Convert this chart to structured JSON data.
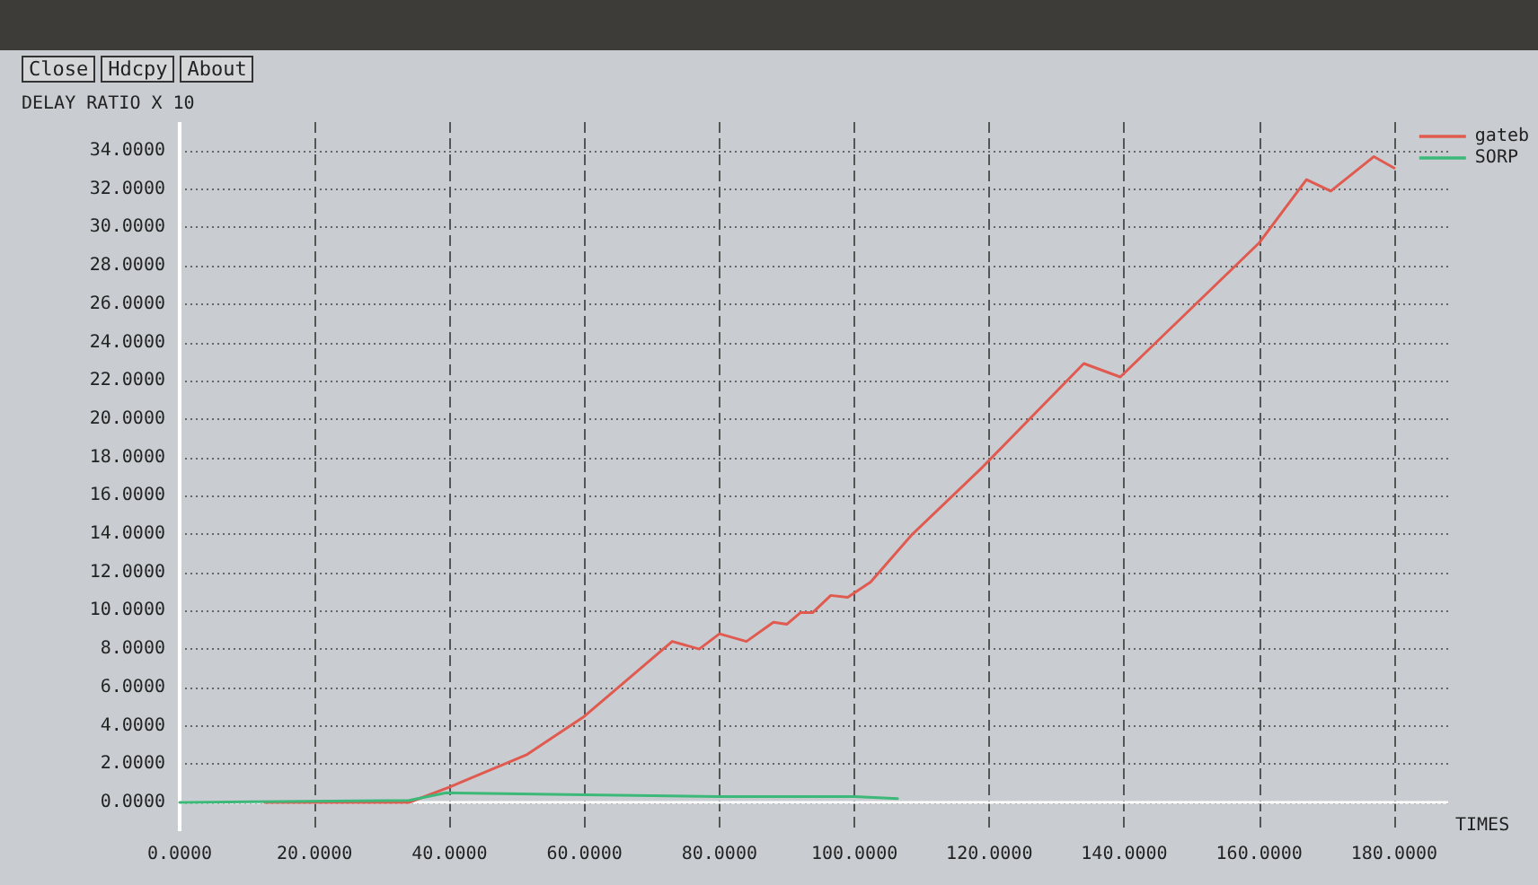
{
  "chart_data": {
    "type": "line",
    "ylabel": "DELAY RATIO X 10",
    "xlabel": "TIMES",
    "annotations": [
      "Close",
      "Hdcpy",
      "About"
    ],
    "xlim": [
      0,
      188
    ],
    "ylim": [
      -1.5,
      35.5
    ],
    "xticks": [
      {
        "value": 0,
        "label": "0.0000"
      },
      {
        "value": 20,
        "label": "20.0000"
      },
      {
        "value": 40,
        "label": "40.0000"
      },
      {
        "value": 60,
        "label": "60.0000"
      },
      {
        "value": 80,
        "label": "80.0000"
      },
      {
        "value": 100,
        "label": "100.0000"
      },
      {
        "value": 120,
        "label": "120.0000"
      },
      {
        "value": 140,
        "label": "140.0000"
      },
      {
        "value": 160,
        "label": "160.0000"
      },
      {
        "value": 180,
        "label": "180.0000"
      }
    ],
    "yticks": [
      {
        "value": 0,
        "label": "0.0000"
      },
      {
        "value": 2,
        "label": "2.0000"
      },
      {
        "value": 4,
        "label": "4.0000"
      },
      {
        "value": 6,
        "label": "6.0000"
      },
      {
        "value": 8,
        "label": "8.0000"
      },
      {
        "value": 10,
        "label": "10.0000"
      },
      {
        "value": 12,
        "label": "12.0000"
      },
      {
        "value": 14,
        "label": "14.0000"
      },
      {
        "value": 16,
        "label": "16.0000"
      },
      {
        "value": 18,
        "label": "18.0000"
      },
      {
        "value": 20,
        "label": "20.0000"
      },
      {
        "value": 22,
        "label": "22.0000"
      },
      {
        "value": 24,
        "label": "24.0000"
      },
      {
        "value": 26,
        "label": "26.0000"
      },
      {
        "value": 28,
        "label": "28.0000"
      },
      {
        "value": 30,
        "label": "30.0000"
      },
      {
        "value": 32,
        "label": "32.0000"
      },
      {
        "value": 34,
        "label": "34.0000"
      }
    ],
    "grid": true,
    "legend": "top right",
    "marker": "none",
    "line_style": "solid",
    "series": [
      {
        "name": "gateb",
        "color": "#e05a50",
        "x": [
          12.6,
          34,
          40,
          51.5,
          60,
          73,
          77,
          80,
          84,
          88,
          90,
          92,
          93.8,
          96.5,
          99,
          102.4,
          108.6,
          119,
          134,
          139.4,
          160,
          167,
          170.6,
          177,
          180
        ],
        "values": [
          0,
          0,
          0.8,
          2.5,
          4.5,
          8.4,
          8.0,
          8.8,
          8.4,
          9.4,
          9.3,
          9.9,
          9.9,
          10.8,
          10.7,
          11.5,
          14,
          17.5,
          22.9,
          22.2,
          29.2,
          32.5,
          31.9,
          33.7,
          33.1
        ]
      },
      {
        "name": "SORP",
        "color": "#3cb878",
        "x": [
          0,
          34,
          39.5,
          60,
          80,
          100,
          106.4
        ],
        "values": [
          0,
          0.1,
          0.5,
          0.4,
          0.3,
          0.3,
          0.2
        ]
      }
    ]
  }
}
